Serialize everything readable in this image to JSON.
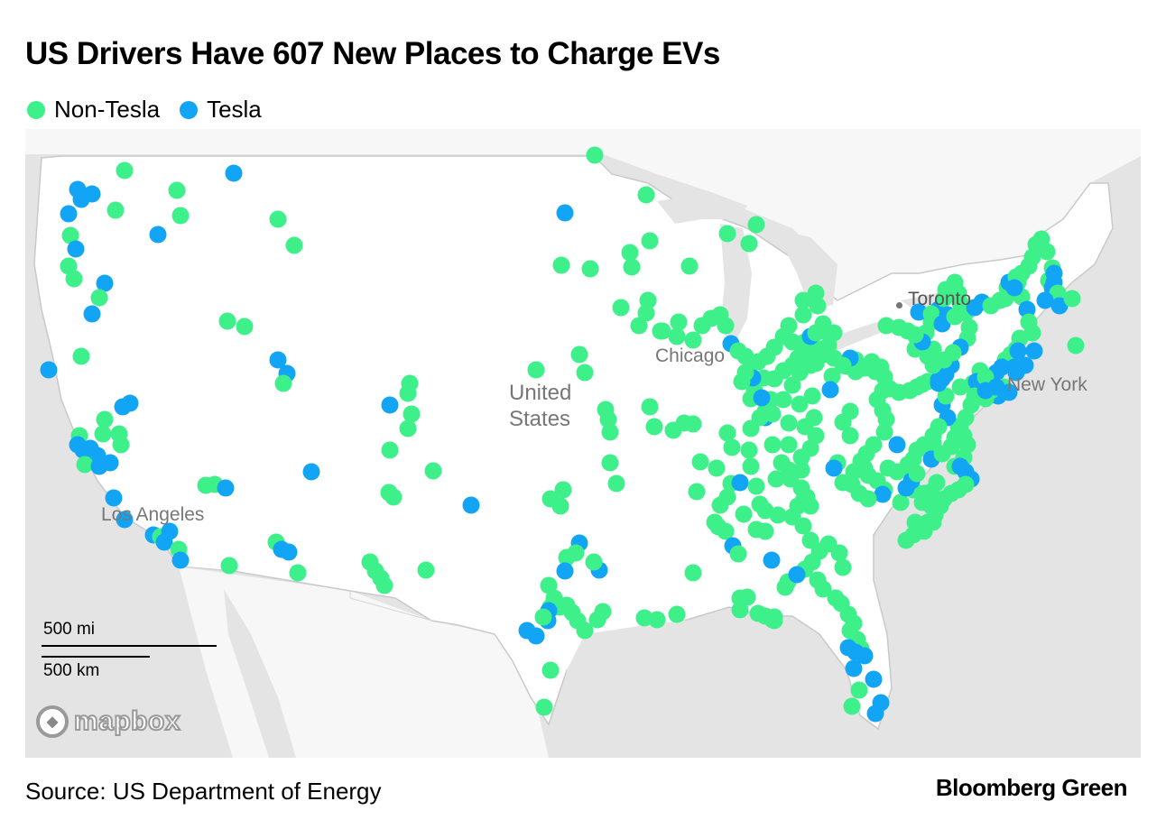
{
  "title": "US Drivers Have 607 New Places to Charge EVs",
  "legend": [
    {
      "label": "Non-Tesla",
      "color": "#3ef08a"
    },
    {
      "label": "Tesla",
      "color": "#13a5f5"
    }
  ],
  "map_labels": {
    "country": "United\nStates",
    "chicago": "Chicago",
    "toronto": "Toronto",
    "new_york": "New York",
    "los_angeles": "Los Angeles"
  },
  "scale": {
    "miles": "500 mi",
    "km": "500 km"
  },
  "attribution": "mapbox",
  "source": "Source: US Department of Energy",
  "brand": "Bloomberg Green",
  "colors": {
    "non_tesla": "#3ef08a",
    "tesla": "#13a5f5",
    "land": "#ffffff",
    "water": "#e4e4e4"
  }
}
